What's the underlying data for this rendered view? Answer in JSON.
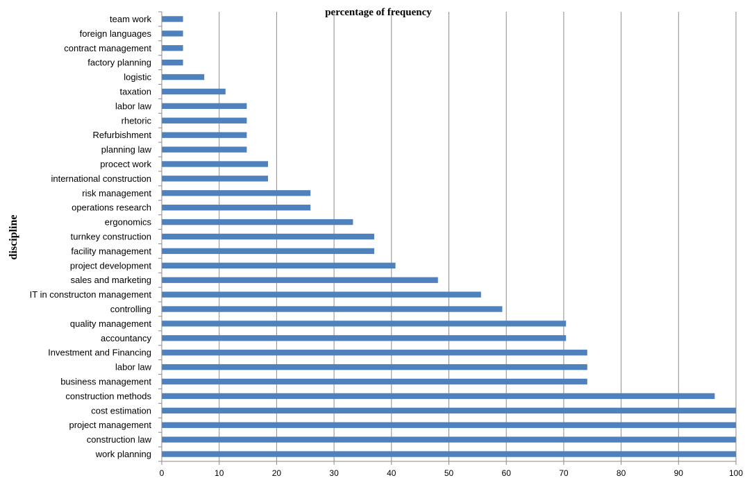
{
  "chart_data": {
    "type": "bar",
    "orientation": "horizontal",
    "title": "percentage  of  frequency",
    "xlabel": "",
    "ylabel": "discipline",
    "xlim": [
      0,
      100
    ],
    "xticks": [
      "0",
      "10",
      "20",
      "30",
      "40",
      "50",
      "60",
      "70",
      "80",
      "90",
      "100"
    ],
    "grid": true,
    "legend": "none",
    "bar_color": "#4f81bd",
    "categories": [
      "team work",
      "foreign languages",
      "contract management",
      "factory planning",
      "logistic",
      "taxation",
      "labor law",
      "rhetoric",
      "Refurbishment",
      "planning law",
      "procect work",
      "international construction",
      "risk management",
      "operations research",
      "ergonomics",
      "turnkey construction",
      "facility management",
      "project development",
      "sales and marketing",
      "IT in constructon management",
      "controlling",
      "quality management",
      "accountancy",
      "Investment and Financing",
      "labor law",
      "business management",
      "construction methods",
      "cost estimation",
      "project management",
      "construction law",
      "work planning"
    ],
    "values": [
      3.7,
      3.7,
      3.7,
      3.7,
      7.4,
      11.1,
      14.8,
      14.8,
      14.8,
      14.8,
      18.5,
      18.5,
      25.9,
      25.9,
      33.3,
      37.0,
      37.0,
      40.7,
      48.1,
      55.6,
      59.3,
      70.4,
      70.4,
      74.1,
      74.1,
      74.1,
      96.3,
      100,
      100,
      100,
      100
    ]
  }
}
